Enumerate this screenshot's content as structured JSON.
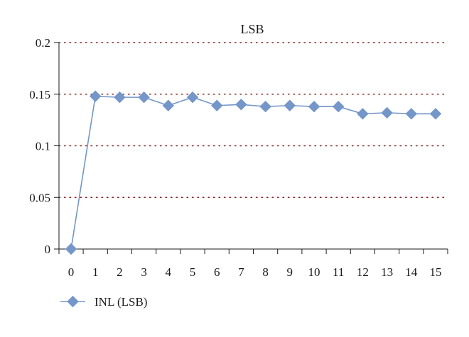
{
  "chart_data": {
    "type": "line",
    "title": "LSB",
    "xlabel": "",
    "ylabel": "",
    "x": [
      0,
      1,
      2,
      3,
      4,
      5,
      6,
      7,
      8,
      9,
      10,
      11,
      12,
      13,
      14,
      15
    ],
    "xlim": [
      0,
      15
    ],
    "ylim": [
      0,
      0.2
    ],
    "y_ticks": [
      0,
      0.05,
      0.1,
      0.15,
      0.2
    ],
    "y_tick_labels": [
      "0",
      "0.05",
      "0.1",
      "0.15",
      "0.2"
    ],
    "x_tick_labels": [
      "0",
      "1",
      "2",
      "3",
      "4",
      "5",
      "6",
      "7",
      "8",
      "9",
      "10",
      "11",
      "12",
      "13",
      "14",
      "15"
    ],
    "grid": "horizontal dotted",
    "legend_position": "bottom-left",
    "series": [
      {
        "name": "INL (LSB)",
        "marker": "diamond",
        "color": "#7496c9",
        "values": [
          0,
          0.148,
          0.147,
          0.147,
          0.139,
          0.147,
          0.139,
          0.14,
          0.138,
          0.139,
          0.138,
          0.138,
          0.131,
          0.132,
          0.131,
          0.131
        ]
      }
    ]
  },
  "colors": {
    "series": "#7496c9",
    "grid": "#8b1a1a",
    "axis": "#1a1a1a"
  }
}
